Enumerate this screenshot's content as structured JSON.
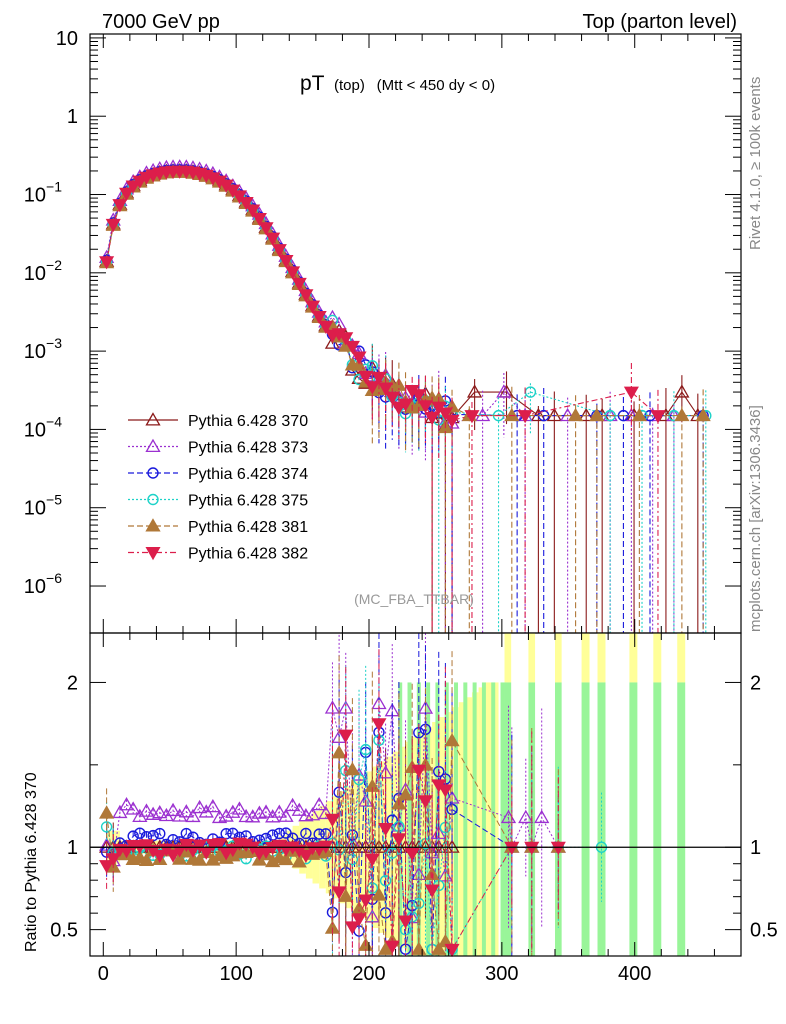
{
  "header": {
    "left_title": "7000 GeV pp",
    "right_title": "Top (parton level)"
  },
  "side_labels": {
    "rivet": "Rivet 4.1.0, ≥ 100k events",
    "mcplots": "mcplots.cern.ch [arXiv:1306.3436]"
  },
  "colors": {
    "s370": "#8b1a1a",
    "s373": "#9b30d0",
    "s374": "#1a1adc",
    "s375": "#1ed2c8",
    "s381": "#b07838",
    "s382": "#dc1e4b",
    "band_yellow": "#ffff99",
    "band_green": "#99f599"
  },
  "chart_data": [
    {
      "type": "scatter",
      "name": "main",
      "title": "pT",
      "title_sub": "(top)",
      "title_cut": "(Mtt < 450 dy < 0)",
      "watermark": "(MC_FBA_TTBAR)",
      "xlim": [
        -10,
        480
      ],
      "ylim_log10": [
        -6.6,
        1.05
      ],
      "yscale": "log",
      "y_tick_labels": [
        {
          "exp": 1,
          "text": "10"
        },
        {
          "exp": 0,
          "text": "1"
        },
        {
          "exp": -1,
          "text": "10",
          "sup": "−1"
        },
        {
          "exp": -2,
          "text": "10",
          "sup": "−2"
        },
        {
          "exp": -3,
          "text": "10",
          "sup": "−3"
        },
        {
          "exp": -4,
          "text": "10",
          "sup": "−4"
        },
        {
          "exp": -5,
          "text": "10",
          "sup": "−5"
        },
        {
          "exp": -6,
          "text": "10",
          "sup": "−6"
        }
      ],
      "legend": [
        {
          "key": "s370",
          "label": "Pythia 6.428 370",
          "marker": "triangle-open",
          "dash": ""
        },
        {
          "key": "s373",
          "label": "Pythia 6.428 373",
          "marker": "triangle-open",
          "dash": "2,2"
        },
        {
          "key": "s374",
          "label": "Pythia 6.428 374",
          "marker": "circle-open",
          "dash": "6,3"
        },
        {
          "key": "s375",
          "label": "Pythia 6.428 375",
          "marker": "circle-open",
          "dash": "2,2"
        },
        {
          "key": "s381",
          "label": "Pythia 6.428 381",
          "marker": "triangle-filled",
          "dash": "6,3"
        },
        {
          "key": "s382",
          "label": "Pythia 6.428 382",
          "marker": "triangle-down-filled",
          "dash": "6,3,2,3"
        }
      ],
      "reference_curve": {
        "description": "Pythia 6.428 370 approx",
        "x": [
          2.5,
          7.5,
          12.5,
          17.5,
          22.5,
          27.5,
          32.5,
          37.5,
          42.5,
          47.5,
          52.5,
          57.5,
          62.5,
          67.5,
          72.5,
          77.5,
          82.5,
          87.5,
          92.5,
          97.5,
          102.5,
          107.5,
          112.5,
          117.5,
          122.5,
          127.5,
          132.5,
          137.5,
          142.5,
          147.5,
          152.5,
          157.5,
          162.5,
          167.5,
          172.5,
          177.5,
          182.5,
          187.5,
          192.5,
          197.5,
          202.5,
          207.5,
          212.5,
          217.5,
          222.5,
          227.5,
          232.5,
          237.5,
          242.5,
          247.5,
          252.5,
          257.5,
          262.5
        ],
        "y": [
          0.014,
          0.042,
          0.075,
          0.105,
          0.13,
          0.15,
          0.168,
          0.18,
          0.19,
          0.197,
          0.2,
          0.201,
          0.2,
          0.195,
          0.188,
          0.178,
          0.165,
          0.15,
          0.133,
          0.115,
          0.097,
          0.08,
          0.064,
          0.05,
          0.038,
          0.028,
          0.02,
          0.0145,
          0.0104,
          0.0074,
          0.0053,
          0.0038,
          0.0028,
          0.0021,
          0.0016,
          0.00125,
          0.00098,
          0.00078,
          0.00063,
          0.00052,
          0.00044,
          0.00037,
          0.00031,
          0.00027,
          0.00024,
          0.00022,
          0.0002,
          0.00019,
          0.00018,
          0.00017,
          0.00016,
          0.00015,
          0.00015
        ]
      },
      "tail_value": 0.00015
    },
    {
      "type": "scatter",
      "name": "ratio",
      "ylabel": "Ratio to Pythia 6.428 370",
      "xlim": [
        -10,
        480
      ],
      "ylim": [
        0.34,
        2.3
      ],
      "y_ticks": [
        {
          "v": 0.5,
          "label": "0.5"
        },
        {
          "v": 1,
          "label": "1"
        },
        {
          "v": 2,
          "label": "2"
        }
      ],
      "x_ticks": [
        {
          "v": 0,
          "label": "0"
        },
        {
          "v": 100,
          "label": "100"
        },
        {
          "v": 200,
          "label": "200"
        },
        {
          "v": 300,
          "label": "300"
        },
        {
          "v": 400,
          "label": "400"
        }
      ],
      "series_offsets": {
        "s370": 0.0,
        "s373": 0.22,
        "s374": 0.05,
        "s375": -0.03,
        "s381": -0.05,
        "s382": -0.01
      },
      "green_bands_x": [
        [
          302,
          307
        ],
        [
          320,
          325
        ],
        [
          340,
          345
        ],
        [
          360,
          366
        ],
        [
          372,
          378
        ],
        [
          396,
          402
        ],
        [
          414,
          420
        ],
        [
          432,
          438
        ]
      ]
    }
  ]
}
